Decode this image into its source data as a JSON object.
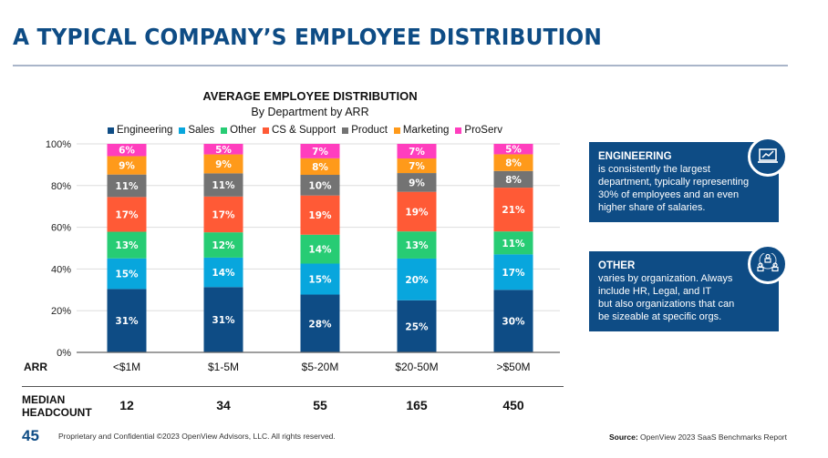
{
  "page": {
    "title": "A TYPICAL COMPANY’S EMPLOYEE DISTRIBUTION",
    "page_number": "45",
    "footer": "Proprietary and Confidential ©2023 OpenView Advisors, LLC. All rights reserved.",
    "source_label": "Source:",
    "source_text": " OpenView 2023 SaaS Benchmarks Report"
  },
  "chart_data": {
    "type": "bar",
    "stacked": true,
    "title": "AVERAGE EMPLOYEE DISTRIBUTION",
    "subtitle": "By Department by ARR",
    "xlabel": "ARR",
    "ylabel": "",
    "ylim": [
      0,
      100
    ],
    "yticks": [
      "0%",
      "20%",
      "40%",
      "60%",
      "80%",
      "100%"
    ],
    "grid": true,
    "legend_position": "top",
    "categories": [
      "<$1M",
      "$1-5M",
      "$5-20M",
      "$20-50M",
      ">$50M"
    ],
    "series": [
      {
        "name": "Engineering",
        "color": "#0e4c85",
        "values": [
          31,
          31,
          28,
          25,
          30
        ]
      },
      {
        "name": "Sales",
        "color": "#08a6dd",
        "values": [
          15,
          14,
          15,
          20,
          17
        ]
      },
      {
        "name": "Other",
        "color": "#27cc74",
        "values": [
          13,
          12,
          14,
          13,
          11
        ]
      },
      {
        "name": "CS & Support",
        "color": "#ff5a36",
        "values": [
          17,
          17,
          19,
          19,
          21
        ]
      },
      {
        "name": "Product",
        "color": "#737373",
        "values": [
          11,
          11,
          10,
          9,
          8
        ]
      },
      {
        "name": "Marketing",
        "color": "#ff9a1a",
        "values": [
          9,
          9,
          8,
          7,
          8
        ]
      },
      {
        "name": "ProServ",
        "color": "#ff3ebe",
        "values": [
          6,
          5,
          7,
          7,
          5
        ]
      }
    ],
    "headcount_label": [
      "MEDIAN",
      "HEADCOUNT"
    ],
    "median_headcount": [
      "12",
      "34",
      "55",
      "165",
      "450"
    ]
  },
  "callouts": [
    {
      "icon": "laptop-chart-icon",
      "heading": "ENGINEERING",
      "lines": [
        "is consistently the largest",
        "department, typically representing",
        "30% of employees and an even",
        "higher share of salaries."
      ]
    },
    {
      "icon": "people-network-icon",
      "heading": "OTHER",
      "lines": [
        "varies by organization. Always",
        "include HR, Legal, and IT",
        "but also organizations that can",
        "be sizeable at specific orgs."
      ]
    }
  ]
}
